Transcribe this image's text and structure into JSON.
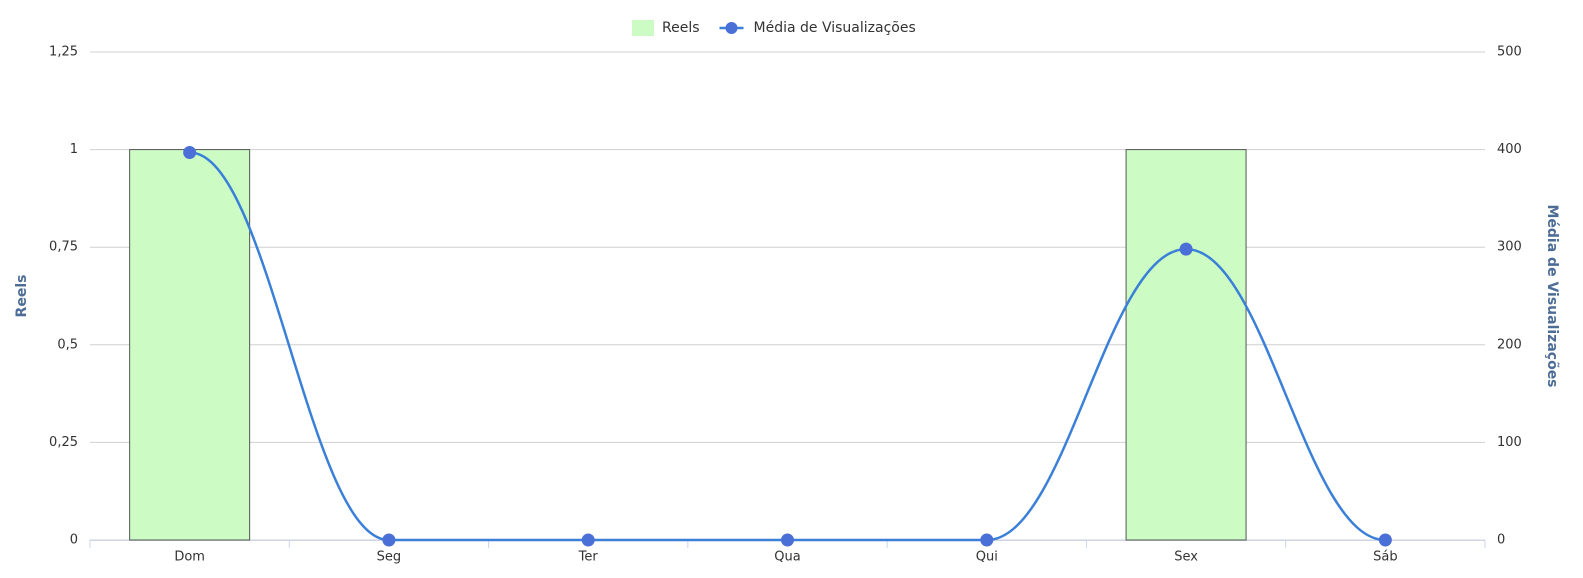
{
  "chart_data": {
    "type": "combo",
    "categories": [
      "Dom",
      "Seg",
      "Ter",
      "Qua",
      "Qui",
      "Sex",
      "Sáb"
    ],
    "series": [
      {
        "name": "Reels",
        "type": "bar",
        "color": "#ccfcc4",
        "axis": "y",
        "values": [
          1,
          0,
          0,
          0,
          0,
          1,
          0
        ]
      },
      {
        "name": "Média de Visualizações",
        "type": "line",
        "color": "#3a80d8",
        "axis": "y2",
        "values": [
          397,
          0,
          0,
          0,
          0,
          298,
          0
        ]
      }
    ],
    "ylabel": "Reels",
    "y2label": "Média de Visualizações",
    "ylim": [
      0,
      1.25
    ],
    "yticks": [
      {
        "value": 0,
        "label": "0"
      },
      {
        "value": 0.25,
        "label": "0,25"
      },
      {
        "value": 0.5,
        "label": "0,5"
      },
      {
        "value": 0.75,
        "label": "0,75"
      },
      {
        "value": 1,
        "label": "1"
      },
      {
        "value": 1.25,
        "label": "1,25"
      }
    ],
    "y2lim": [
      0,
      500
    ],
    "y2ticks": [
      0,
      100,
      200,
      300,
      400,
      500
    ],
    "grid": true,
    "legend": "top"
  }
}
